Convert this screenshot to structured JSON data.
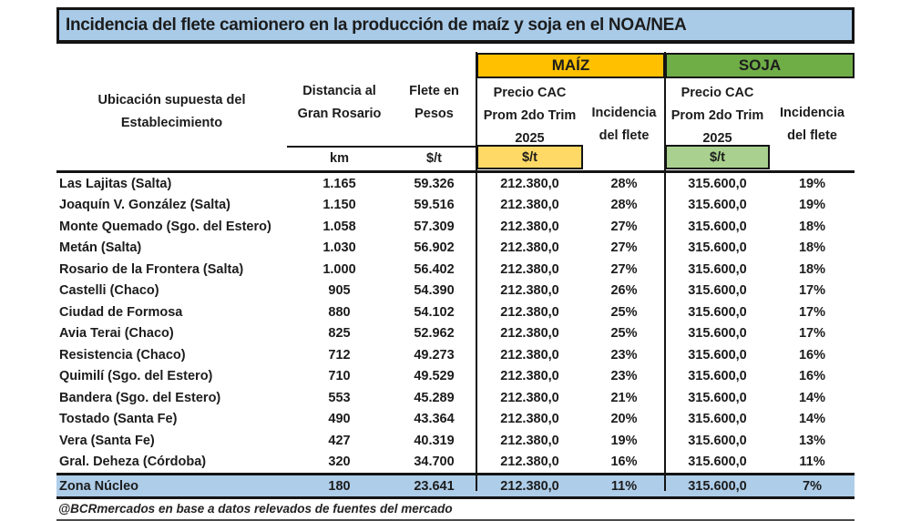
{
  "title": "Incidencia del flete camionero en la producción de maíz y soja en el NOA/NEA",
  "colors": {
    "title_background": "#a9cbe8",
    "maiz_header": "#ffc000",
    "maiz_unit_cell": "#ffd966",
    "soja_header": "#6fad47",
    "soja_unit_cell": "#a9d08e",
    "highlight_row": "#aecde9",
    "border": "#141414"
  },
  "table": {
    "headers": {
      "location": "Ubicación supuesta del\nEstablecimiento",
      "distance": "Distancia al\nGran Rosario",
      "freight": "Flete en\nPesos",
      "maiz_group": "MAÍZ",
      "soja_group": "SOJA",
      "maiz_price": "Precio CAC\nProm 2do Trim\n2025",
      "maiz_incidence": "Incidencia\ndel flete",
      "soja_price": "Precio CAC\nProm 2do Trim\n2025",
      "soja_incidence": "Incidencia\ndel flete"
    },
    "units": {
      "distance": "km",
      "freight": "$/t",
      "maiz_price": "$/t",
      "soja_price": "$/t"
    },
    "rows": [
      {
        "location": "Las Lajitas (Salta)",
        "distance": "1.165",
        "freight": "59.326",
        "maiz_price": "212.380,0",
        "maiz_incidence": "28%",
        "soja_price": "315.600,0",
        "soja_incidence": "19%"
      },
      {
        "location": "Joaquín V. González (Salta)",
        "distance": "1.150",
        "freight": "59.516",
        "maiz_price": "212.380,0",
        "maiz_incidence": "28%",
        "soja_price": "315.600,0",
        "soja_incidence": "19%"
      },
      {
        "location": "Monte Quemado (Sgo. del Estero)",
        "distance": "1.058",
        "freight": "57.309",
        "maiz_price": "212.380,0",
        "maiz_incidence": "27%",
        "soja_price": "315.600,0",
        "soja_incidence": "18%"
      },
      {
        "location": "Metán (Salta)",
        "distance": "1.030",
        "freight": "56.902",
        "maiz_price": "212.380,0",
        "maiz_incidence": "27%",
        "soja_price": "315.600,0",
        "soja_incidence": "18%"
      },
      {
        "location": "Rosario de la Frontera (Salta)",
        "distance": "1.000",
        "freight": "56.402",
        "maiz_price": "212.380,0",
        "maiz_incidence": "27%",
        "soja_price": "315.600,0",
        "soja_incidence": "18%"
      },
      {
        "location": "Castelli (Chaco)",
        "distance": "905",
        "freight": "54.390",
        "maiz_price": "212.380,0",
        "maiz_incidence": "26%",
        "soja_price": "315.600,0",
        "soja_incidence": "17%"
      },
      {
        "location": "Ciudad de Formosa",
        "distance": "880",
        "freight": "54.102",
        "maiz_price": "212.380,0",
        "maiz_incidence": "25%",
        "soja_price": "315.600,0",
        "soja_incidence": "17%"
      },
      {
        "location": "Avia Terai (Chaco)",
        "distance": "825",
        "freight": "52.962",
        "maiz_price": "212.380,0",
        "maiz_incidence": "25%",
        "soja_price": "315.600,0",
        "soja_incidence": "17%"
      },
      {
        "location": "Resistencia (Chaco)",
        "distance": "712",
        "freight": "49.273",
        "maiz_price": "212.380,0",
        "maiz_incidence": "23%",
        "soja_price": "315.600,0",
        "soja_incidence": "16%"
      },
      {
        "location": "Quimilí (Sgo. del Estero)",
        "distance": "710",
        "freight": "49.529",
        "maiz_price": "212.380,0",
        "maiz_incidence": "23%",
        "soja_price": "315.600,0",
        "soja_incidence": "16%"
      },
      {
        "location": "Bandera (Sgo. del Estero)",
        "distance": "553",
        "freight": "45.289",
        "maiz_price": "212.380,0",
        "maiz_incidence": "21%",
        "soja_price": "315.600,0",
        "soja_incidence": "14%"
      },
      {
        "location": "Tostado (Santa Fe)",
        "distance": "490",
        "freight": "43.364",
        "maiz_price": "212.380,0",
        "maiz_incidence": "20%",
        "soja_price": "315.600,0",
        "soja_incidence": "14%"
      },
      {
        "location": "Vera (Santa Fe)",
        "distance": "427",
        "freight": "40.319",
        "maiz_price": "212.380,0",
        "maiz_incidence": "19%",
        "soja_price": "315.600,0",
        "soja_incidence": "13%"
      },
      {
        "location": "Gral. Deheza (Córdoba)",
        "distance": "320",
        "freight": "34.700",
        "maiz_price": "212.380,0",
        "maiz_incidence": "16%",
        "soja_price": "315.600,0",
        "soja_incidence": "11%"
      }
    ],
    "total_row": {
      "location": "Zona Núcleo",
      "distance": "180",
      "freight": "23.641",
      "maiz_price": "212.380,0",
      "maiz_incidence": "11%",
      "soja_price": "315.600,0",
      "soja_incidence": "7%"
    }
  },
  "footer": "@BCRmercados en base a datos relevados de fuentes del mercado"
}
